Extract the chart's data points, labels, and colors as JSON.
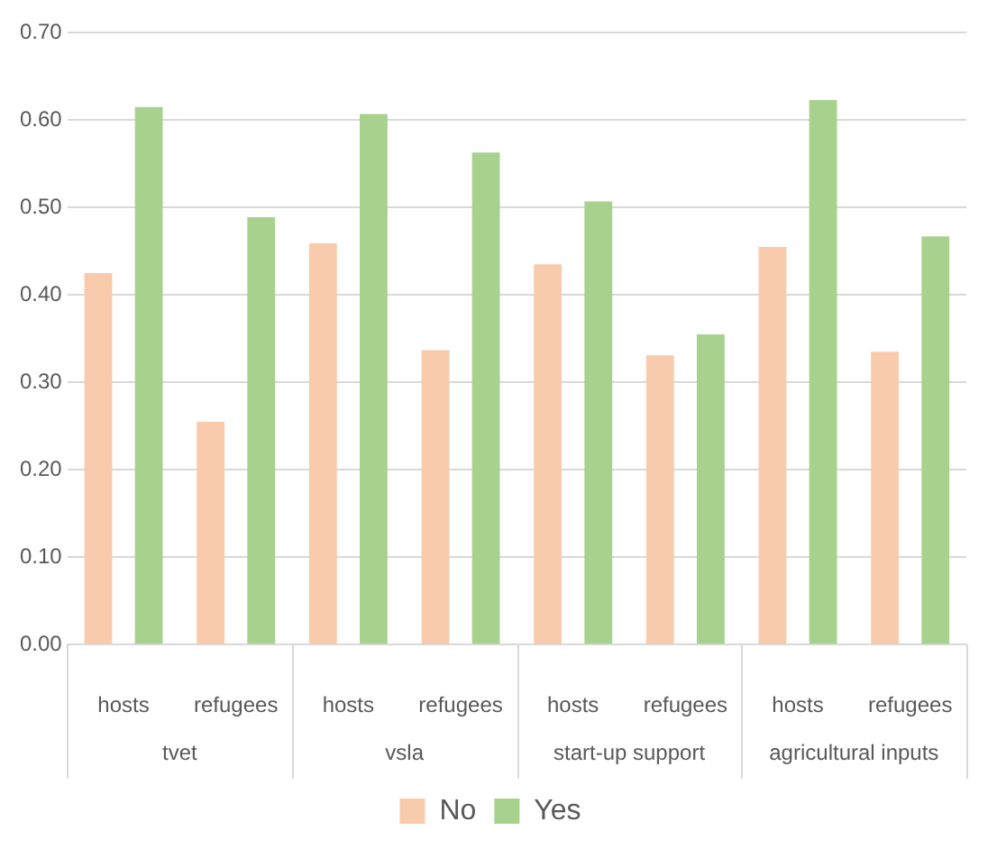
{
  "chart_data": {
    "type": "bar",
    "categories": [
      "hosts",
      "refugees",
      "hosts",
      "refugees",
      "hosts",
      "refugees",
      "hosts",
      "refugees"
    ],
    "series": [
      {
        "name": "No",
        "color": "#f8cbad",
        "values": [
          0.425,
          0.255,
          0.459,
          0.337,
          0.435,
          0.331,
          0.455,
          0.335
        ]
      },
      {
        "name": "Yes",
        "color": "#a9d18e",
        "values": [
          0.615,
          0.489,
          0.607,
          0.563,
          0.507,
          0.355,
          0.623,
          0.467
        ]
      }
    ],
    "annotations": [
      "tvet",
      "vsla",
      "start-up support",
      "agricultural inputs"
    ],
    "ylim": [
      0,
      0.7
    ],
    "yticks": [
      {
        "value": 0,
        "label": "0.00"
      },
      {
        "value": 0.1,
        "label": "0.10"
      },
      {
        "value": 0.2,
        "label": "0.20"
      },
      {
        "value": 0.3,
        "label": "0.30"
      },
      {
        "value": 0.4,
        "label": "0.40"
      },
      {
        "value": 0.5,
        "label": "0.50"
      },
      {
        "value": 0.6,
        "label": "0.60"
      },
      {
        "value": 0.7,
        "label": "0.70"
      }
    ],
    "grid": "y",
    "legend": "bottom"
  }
}
